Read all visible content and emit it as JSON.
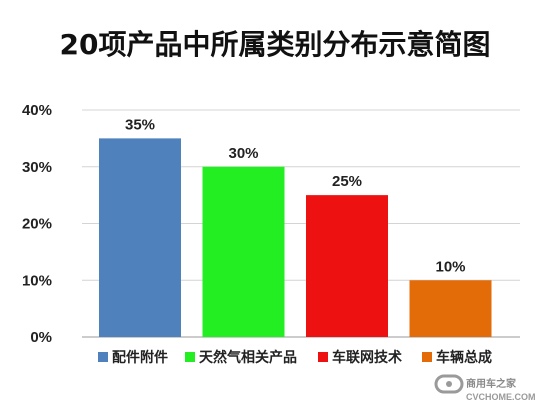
{
  "chart_data": {
    "type": "bar",
    "title": "20项产品中所属类别分布示意简图",
    "categories": [
      "配件附件",
      "天然气相关产品",
      "车联网技术",
      "车辆总成"
    ],
    "values": [
      35,
      30,
      25,
      10
    ],
    "data_labels": [
      "35%",
      "30%",
      "25%",
      "10%"
    ],
    "colors": [
      "#4f81bd",
      "#22ee22",
      "#ee1111",
      "#e36c09"
    ],
    "y_ticks": [
      0,
      10,
      20,
      30,
      40
    ],
    "y_tick_labels": [
      "0%",
      "10%",
      "20%",
      "30%",
      "40%"
    ],
    "ylim": [
      0,
      40
    ],
    "grid": true,
    "legend_placement": "bottom"
  },
  "watermark": {
    "text": "商用车之家",
    "subtext": "CVCHOME.COM"
  }
}
